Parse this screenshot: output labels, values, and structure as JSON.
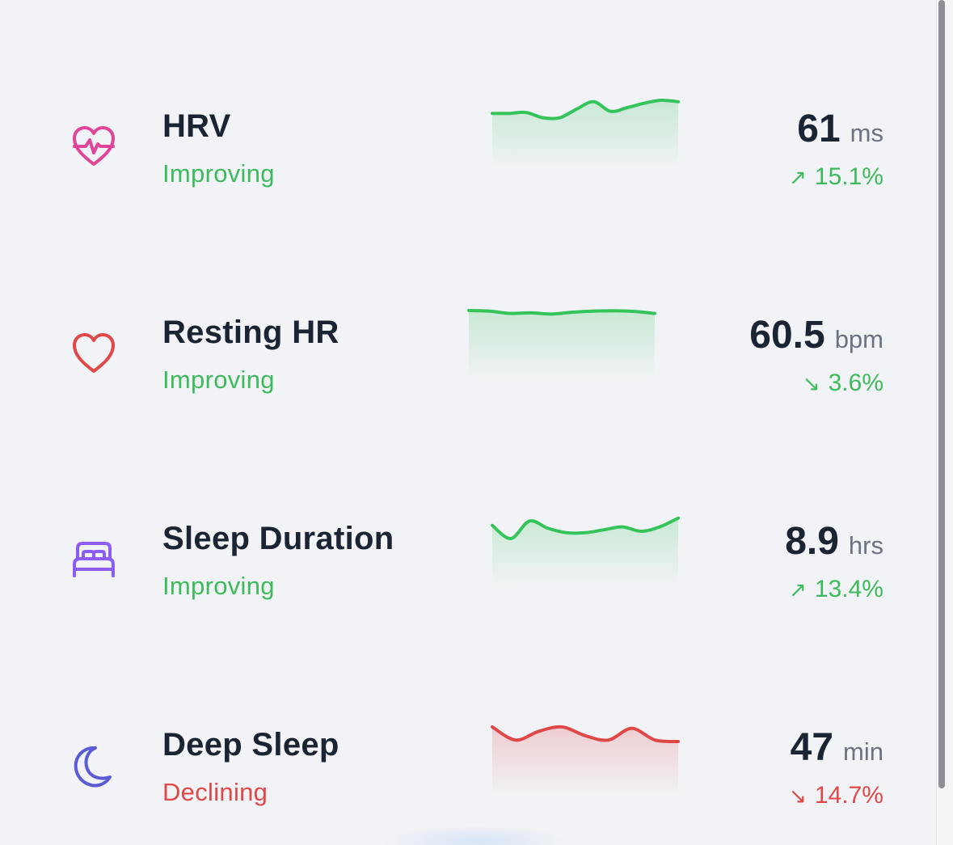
{
  "metrics": [
    {
      "icon": "heart-pulse-icon",
      "icon_color": "#e0459a",
      "name": "HRV",
      "status": "Improving",
      "trend": "good",
      "value": "61",
      "unit": "ms",
      "direction": "up",
      "change": "15.1%",
      "sparkline_color": "#34c45a",
      "sparkline": [
        0.45,
        0.45,
        0.42,
        0.6,
        0.6,
        0.3,
        0.05,
        0.38,
        0.25,
        0.1,
        0.0,
        0.05
      ]
    },
    {
      "icon": "heart-icon",
      "icon_color": "#e04848",
      "name": "Resting HR",
      "status": "Improving",
      "trend": "good",
      "value": "60.5",
      "unit": "bpm",
      "direction": "down",
      "change": "3.6%",
      "sparkline_color": "#34c45a",
      "sparkline": [
        0.0,
        0.02,
        0.1,
        0.08,
        0.12,
        0.06,
        0.02,
        0.01,
        0.03,
        0.1
      ]
    },
    {
      "icon": "bed-icon",
      "icon_color": "#8b5cf6",
      "name": "Sleep Duration",
      "status": "Improving",
      "trend": "good",
      "value": "8.9",
      "unit": "hrs",
      "direction": "up",
      "change": "13.4%",
      "sparkline_color": "#34c45a",
      "sparkline": [
        0.3,
        0.75,
        0.15,
        0.4,
        0.55,
        0.55,
        0.45,
        0.35,
        0.5,
        0.35,
        0.05
      ]
    },
    {
      "icon": "moon-icon",
      "icon_color": "#5b5bd6",
      "name": "Deep Sleep",
      "status": "Declining",
      "trend": "bad",
      "value": "47",
      "unit": "min",
      "direction": "down",
      "change": "14.7%",
      "sparkline_color": "#e04848",
      "sparkline": [
        0.0,
        0.45,
        0.15,
        0.0,
        0.3,
        0.45,
        0.05,
        0.45,
        0.5
      ]
    }
  ]
}
